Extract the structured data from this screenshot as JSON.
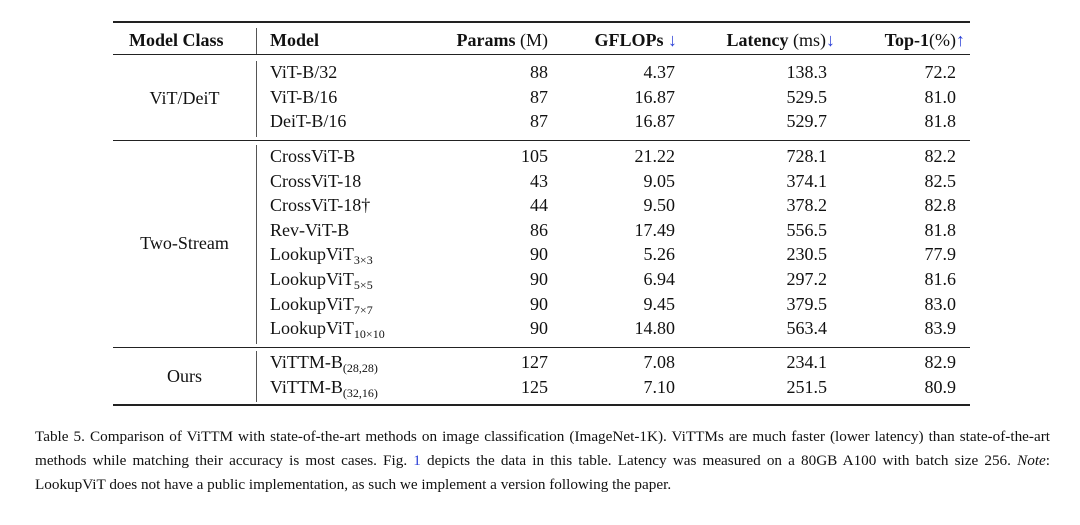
{
  "table": {
    "headers": {
      "model_class": "Model Class",
      "model": "Model",
      "params": "Params",
      "params_unit": "(M)",
      "gflops": "GFLOPs",
      "gflops_arrow": "↓",
      "latency": "Latency",
      "latency_unit": "(ms)",
      "latency_arrow": "↓",
      "top1": "Top-1",
      "top1_unit": "(%)",
      "top1_arrow": "↑"
    },
    "groups": [
      {
        "name": "ViT/DeiT",
        "rows": [
          {
            "model": "ViT-B/32",
            "sub": "",
            "params": "88",
            "gflops": "4.37",
            "latency": "138.3",
            "top1": "72.2"
          },
          {
            "model": "ViT-B/16",
            "sub": "",
            "params": "87",
            "gflops": "16.87",
            "latency": "529.5",
            "top1": "81.0"
          },
          {
            "model": "DeiT-B/16",
            "sub": "",
            "params": "87",
            "gflops": "16.87",
            "latency": "529.7",
            "top1": "81.8"
          }
        ]
      },
      {
        "name": "Two-Stream",
        "rows": [
          {
            "model": "CrossViT-B",
            "sub": "",
            "params": "105",
            "gflops": "21.22",
            "latency": "728.1",
            "top1": "82.2"
          },
          {
            "model": "CrossViT-18",
            "sub": "",
            "params": "43",
            "gflops": "9.05",
            "latency": "374.1",
            "top1": "82.5"
          },
          {
            "model": "CrossViT-18†",
            "sub": "",
            "params": "44",
            "gflops": "9.50",
            "latency": "378.2",
            "top1": "82.8"
          },
          {
            "model": "Rev-ViT-B",
            "sub": "",
            "params": "86",
            "gflops": "17.49",
            "latency": "556.5",
            "top1": "81.8"
          },
          {
            "model": "LookupViT",
            "sub": "3×3",
            "params": "90",
            "gflops": "5.26",
            "latency": "230.5",
            "top1": "77.9"
          },
          {
            "model": "LookupViT",
            "sub": "5×5",
            "params": "90",
            "gflops": "6.94",
            "latency": "297.2",
            "top1": "81.6"
          },
          {
            "model": "LookupViT",
            "sub": "7×7",
            "params": "90",
            "gflops": "9.45",
            "latency": "379.5",
            "top1": "83.0"
          },
          {
            "model": "LookupViT",
            "sub": "10×10",
            "params": "90",
            "gflops": "14.80",
            "latency": "563.4",
            "top1": "83.9"
          }
        ]
      },
      {
        "name": "Ours",
        "rows": [
          {
            "model": "ViTTM-B",
            "sub": "(28,28)",
            "params": "127",
            "gflops": "7.08",
            "latency": "234.1",
            "top1": "82.9"
          },
          {
            "model": "ViTTM-B",
            "sub": "(32,16)",
            "params": "125",
            "gflops": "7.10",
            "latency": "251.5",
            "top1": "80.9"
          }
        ]
      }
    ]
  },
  "caption": {
    "part1": "Table 5. Comparison of ViTTM with state-of-the-art methods on image classification (ImageNet-1K). ViTTMs are much faster (lower latency) than state-of-the-art methods while matching their accuracy is most cases. Fig. ",
    "fig_ref": "1",
    "part2": " depicts the data in this table. Latency was measured on a 80GB A100 with batch size 256. ",
    "note_label": "Note",
    "part3": ": LookupViT does not have a public implementation, as such we implement a version following the paper."
  },
  "colors": {
    "arrow": "#2a3fd6",
    "link": "#2a3fd6"
  }
}
